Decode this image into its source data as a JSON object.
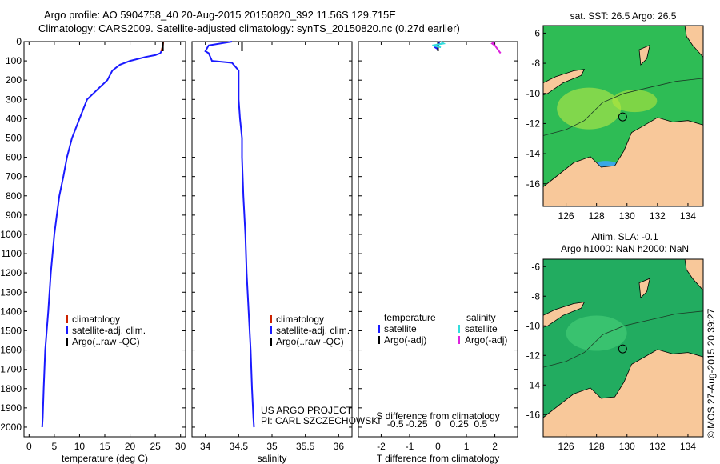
{
  "header": {
    "line1": "Argo profile: AO 5904758_40 20-Aug-2015 20150820_392 11.56S 129.715E",
    "line2": "Climatology: CARS2009. Satellite-adjusted climatology: synTS_20150820.nc (0.27d earlier)"
  },
  "legend_profile": {
    "items": [
      {
        "label": "climatology",
        "color": "#cc2200"
      },
      {
        "label": "satellite-adj. clim.",
        "color": "#1a1aff"
      },
      {
        "label": "Argo(..raw -QC)",
        "color": "#000000"
      }
    ]
  },
  "legend_diff": {
    "temperature_header": "temperature",
    "salinity_header": "salinity",
    "items_t": [
      {
        "label": "satellite",
        "color": "#1a1aff"
      },
      {
        "label": "Argo(-adj)",
        "color": "#000000"
      }
    ],
    "items_s": [
      {
        "label": "satellite",
        "color": "#33dddd"
      },
      {
        "label": "Argo(-adj)",
        "color": "#dd22dd"
      }
    ]
  },
  "credits": {
    "line1": "US ARGO PROJECT",
    "line2": "PI: CARL SZCZECHOWSKI"
  },
  "maps": {
    "top_title": "sat. SST: 26.5  Argo: 26.5",
    "bottom_title1": "Altim. SLA: -0.1",
    "bottom_title2": "Argo h1000: NaN h2000: NaN",
    "x_ticks": [
      "126",
      "128",
      "130",
      "132",
      "134"
    ],
    "y_ticks": [
      "-6",
      "-8",
      "-10",
      "-12",
      "-14",
      "-16"
    ],
    "xlim": [
      124.5,
      135
    ],
    "ylim": [
      -17.5,
      -5.5
    ],
    "float_position": {
      "lon": 129.715,
      "lat": -11.56
    },
    "land_color": "#f8c89a",
    "ocean_color": "#22b05a"
  },
  "timestamp": "©IMOS 27-Aug-2015 20:39:27",
  "chart_data": [
    {
      "type": "line",
      "xlabel": "temperature (deg C)",
      "ylabel": "",
      "xlim": [
        -1,
        31
      ],
      "ylim": [
        2050,
        0
      ],
      "x_ticks": [
        "0",
        "5",
        "10",
        "15",
        "20",
        "25",
        "30"
      ],
      "y_ticks": [
        "0",
        "100",
        "200",
        "300",
        "400",
        "500",
        "600",
        "700",
        "800",
        "900",
        "1000",
        "1100",
        "1200",
        "1300",
        "1400",
        "1500",
        "1600",
        "1700",
        "1800",
        "1900",
        "2000"
      ],
      "series": [
        {
          "name": "satellite-adj. clim.",
          "color": "#1a1aff",
          "x": [
            26.5,
            26.4,
            26.0,
            25.0,
            23.0,
            20.0,
            18.0,
            16.5,
            15.5,
            13.5,
            11.5,
            10.0,
            8.5,
            7.5,
            6.8,
            6.0,
            5.5,
            5.0,
            4.3,
            3.8,
            3.2,
            2.9,
            2.7,
            2.6
          ],
          "y": [
            0,
            40,
            60,
            70,
            80,
            100,
            120,
            150,
            200,
            250,
            300,
            400,
            500,
            600,
            700,
            800,
            900,
            1000,
            1200,
            1400,
            1600,
            1800,
            1950,
            2000
          ]
        },
        {
          "name": "climatology",
          "color": "#cc2200",
          "x": [
            26.6,
            26.5,
            26.2
          ],
          "y": [
            0,
            20,
            50
          ]
        },
        {
          "name": "Argo(..raw -QC)",
          "color": "#000000",
          "x": [
            26.5,
            26.5
          ],
          "y": [
            0,
            50
          ]
        }
      ]
    },
    {
      "type": "line",
      "xlabel": "salinity",
      "ylabel": "",
      "xlim": [
        33.8,
        36.2
      ],
      "ylim": [
        2050,
        0
      ],
      "x_ticks": [
        "34",
        "34.5",
        "35",
        "35.5",
        "36"
      ],
      "series": [
        {
          "name": "satellite-adj. clim.",
          "color": "#1a1aff",
          "x": [
            34.4,
            34.05,
            34.0,
            34.05,
            34.1,
            34.4,
            34.5,
            34.5,
            34.5,
            34.52,
            34.55,
            34.55,
            34.57,
            34.6,
            34.62,
            34.65,
            34.68,
            34.7,
            34.72,
            34.73
          ],
          "y": [
            0,
            20,
            50,
            60,
            100,
            110,
            150,
            200,
            300,
            400,
            500,
            600,
            800,
            1000,
            1200,
            1400,
            1600,
            1800,
            1950,
            2000
          ]
        },
        {
          "name": "climatology",
          "color": "#cc2200",
          "x": [
            34.55,
            34.55
          ],
          "y": [
            0,
            50
          ]
        },
        {
          "name": "Argo(..raw -QC)",
          "color": "#000000",
          "x": [
            34.55,
            34.55
          ],
          "y": [
            0,
            50
          ]
        }
      ]
    },
    {
      "type": "line",
      "xlabel_top": "S difference from climatology",
      "xlabel": "T difference from climatology",
      "xlim": [
        -2.8,
        2.8
      ],
      "ylim": [
        2050,
        0
      ],
      "x_ticks_t": [
        "-2",
        "-1",
        "0",
        "1",
        "2"
      ],
      "x_ticks_s": [
        "-0.5",
        "-0.25",
        "0",
        "0.25",
        "0.5"
      ],
      "zero_line": true,
      "series": [
        {
          "name": "T satellite",
          "color": "#1a1aff",
          "x": [
            0.0,
            0.05,
            0.0,
            -0.1,
            0.0,
            0.0
          ],
          "y": [
            0,
            10,
            20,
            30,
            40,
            50
          ]
        },
        {
          "name": "T Argo(-adj)",
          "color": "#000000",
          "x": [
            0.0,
            0.0
          ],
          "y": [
            0,
            50
          ]
        },
        {
          "name": "S satellite",
          "color": "#33dddd",
          "x": [
            0.1,
            0.2,
            -0.2,
            0.1
          ],
          "y": [
            0,
            10,
            20,
            30
          ]
        },
        {
          "name": "S Argo(-adj)",
          "color": "#dd22dd",
          "x": [
            2.0,
            1.9,
            2.0,
            2.1,
            2.2
          ],
          "y": [
            0,
            10,
            20,
            40,
            60
          ]
        }
      ]
    }
  ]
}
